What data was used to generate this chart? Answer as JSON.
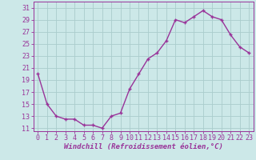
{
  "hours": [
    0,
    1,
    2,
    3,
    4,
    5,
    6,
    7,
    8,
    9,
    10,
    11,
    12,
    13,
    14,
    15,
    16,
    17,
    18,
    19,
    20,
    21,
    22,
    23
  ],
  "values": [
    20.0,
    15.0,
    13.0,
    12.5,
    12.5,
    11.5,
    11.5,
    11.0,
    13.0,
    13.5,
    17.5,
    20.0,
    22.5,
    23.5,
    25.5,
    29.0,
    28.5,
    29.5,
    30.5,
    29.5,
    29.0,
    26.5,
    24.5,
    23.5
  ],
  "line_color": "#993399",
  "marker": "+",
  "bg_color": "#cce8e8",
  "grid_color": "#aacccc",
  "xlabel": "Windchill (Refroidissement éolien,°C)",
  "xlabel_color": "#993399",
  "tick_color": "#993399",
  "ylim": [
    10.5,
    32
  ],
  "yticks": [
    11,
    13,
    15,
    17,
    19,
    21,
    23,
    25,
    27,
    29,
    31
  ],
  "xticks": [
    0,
    1,
    2,
    3,
    4,
    5,
    6,
    7,
    8,
    9,
    10,
    11,
    12,
    13,
    14,
    15,
    16,
    17,
    18,
    19,
    20,
    21,
    22,
    23
  ],
  "xlabel_fontsize": 6.5,
  "tick_fontsize": 6,
  "line_width": 1.0,
  "marker_size": 3
}
